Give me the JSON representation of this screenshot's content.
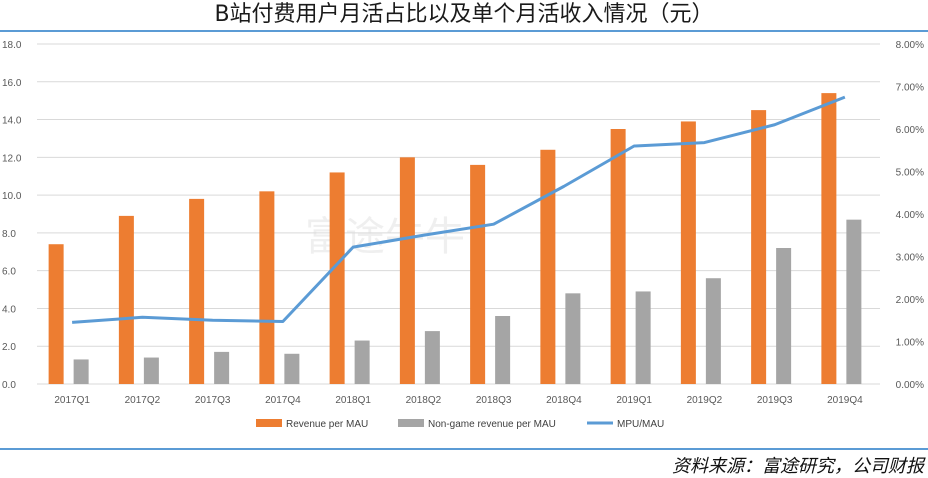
{
  "title": "B站付费用户月活占比以及单个月活收入情况（元）",
  "source": "资料来源：富途研究，公司财报",
  "watermark": "富途牛牛",
  "colors": {
    "revenue": "#ed7d31",
    "nongame": "#a5a5a5",
    "ratio": "#5b9bd5",
    "grid": "#d9d9d9"
  },
  "chart_data": {
    "type": "bar",
    "categories": [
      "2017Q1",
      "2017Q2",
      "2017Q3",
      "2017Q4",
      "2018Q1",
      "2018Q2",
      "2018Q3",
      "2018Q4",
      "2019Q1",
      "2019Q2",
      "2019Q3",
      "2019Q4"
    ],
    "series": [
      {
        "name": "Revenue per MAU",
        "type": "bar",
        "axis": "left",
        "values": [
          7.4,
          8.9,
          9.8,
          10.2,
          11.2,
          12.0,
          11.6,
          12.4,
          13.5,
          13.9,
          14.5,
          15.4
        ]
      },
      {
        "name": "Non-game revenue per MAU",
        "type": "bar",
        "axis": "left",
        "values": [
          1.3,
          1.4,
          1.7,
          1.6,
          2.3,
          2.8,
          3.6,
          4.8,
          4.9,
          5.6,
          7.2,
          8.7
        ]
      },
      {
        "name": "MPU/MAU",
        "type": "line",
        "axis": "right",
        "values": [
          1.45,
          1.57,
          1.5,
          1.47,
          3.22,
          3.5,
          3.76,
          4.65,
          5.6,
          5.68,
          6.1,
          6.75
        ]
      }
    ],
    "ylim": [
      0,
      18
    ],
    "yticks": [
      "0.0",
      "2.0",
      "4.0",
      "6.0",
      "8.0",
      "10.0",
      "12.0",
      "14.0",
      "16.0",
      "18.0"
    ],
    "y2lim": [
      0,
      8
    ],
    "y2ticks": [
      "0.00%",
      "1.00%",
      "2.00%",
      "3.00%",
      "4.00%",
      "5.00%",
      "6.00%",
      "7.00%",
      "8.00%"
    ],
    "legend_position": "bottom"
  }
}
